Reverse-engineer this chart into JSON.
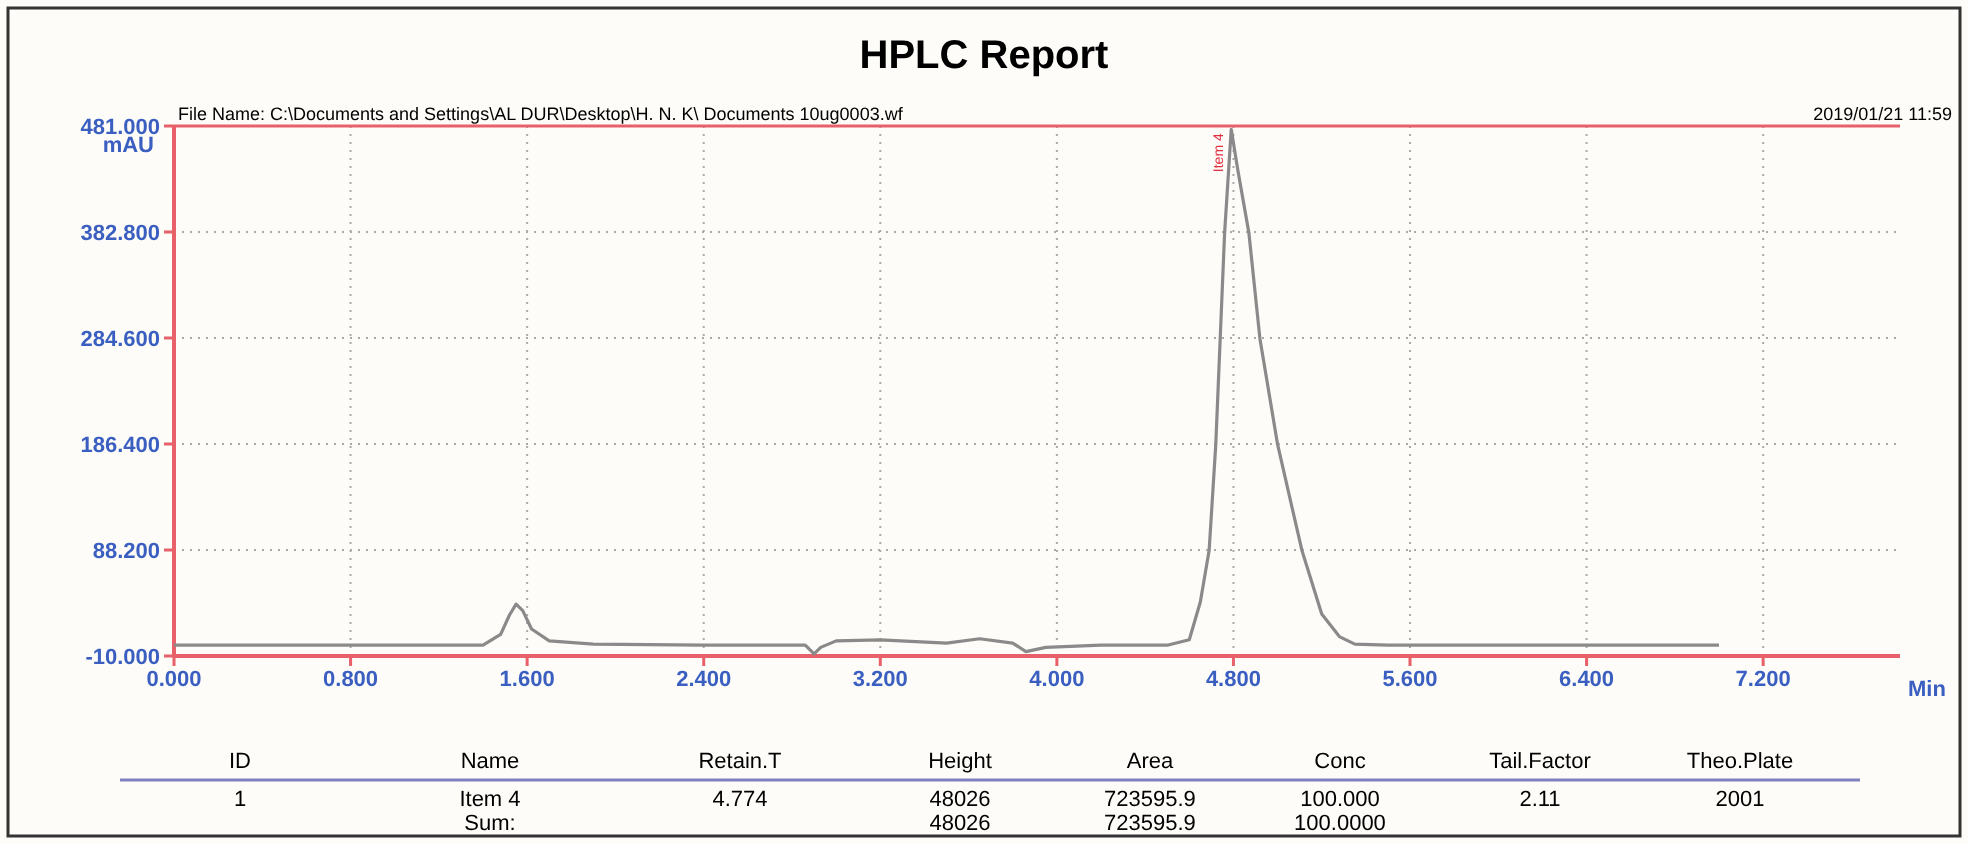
{
  "chart_data": {
    "type": "line",
    "title": "HPLC Report",
    "ylabel": "mAU",
    "xlabel": "Min",
    "annotations": [
      "File Name: C:\\Documents and Settings\\AL DUR\\Desktop\\H. N. K\\ Documents 10ug0003.wf",
      "2019/01/21 11:59",
      {
        "text": "Item 4",
        "x": 4.79,
        "y": 478
      },
      {
        "text": "ID"
      },
      {
        "text": "Name"
      },
      {
        "text": "Retain.T"
      },
      {
        "text": "Height"
      },
      {
        "text": "Area"
      },
      {
        "text": "Conc"
      },
      {
        "text": "Tail.Factor"
      },
      {
        "text": "Theo.Plate"
      },
      {
        "text": "1"
      },
      {
        "text": "Item 4"
      },
      {
        "text": "4.774"
      },
      {
        "text": "48026"
      },
      {
        "text": "723595.9"
      },
      {
        "text": "100.000"
      },
      {
        "text": "2.11"
      },
      {
        "text": "2001"
      },
      {
        "text": "Sum:"
      },
      {
        "text": "48026"
      },
      {
        "text": "723595.9"
      },
      {
        "text": "100.0000"
      }
    ],
    "series": [
      {
        "color": "#8a8a8a",
        "x": [
          0,
          1.4,
          1.48,
          1.52,
          1.55,
          1.58,
          1.62,
          1.7,
          1.9,
          2.4,
          2.86,
          2.9,
          2.93,
          3.0,
          3.2,
          3.5,
          3.65,
          3.8,
          3.86,
          3.95,
          4.2,
          4.5,
          4.6,
          4.65,
          4.69,
          4.72,
          4.74,
          4.76,
          4.79,
          4.82,
          4.87,
          4.92,
          5.0,
          5.11,
          5.2,
          5.28,
          5.35,
          5.5,
          6.0,
          7.0
        ],
        "values": [
          0,
          0,
          10,
          28,
          38,
          32,
          15,
          4,
          1,
          0,
          0,
          -8,
          -2,
          4,
          5,
          2,
          6,
          2,
          -6,
          -2,
          0,
          0,
          5,
          40,
          88,
          186,
          284,
          382,
          478,
          440,
          382,
          284,
          186,
          88,
          29,
          8,
          1,
          0,
          0,
          0
        ]
      }
    ],
    "xlim": [
      0,
      7.82
    ],
    "ylim": [
      -10,
      481
    ],
    "xticks": [
      {
        "value": 0,
        "label": "0.000"
      },
      {
        "value": 0.8,
        "label": "0.800"
      },
      {
        "value": 1.6,
        "label": "1.600"
      },
      {
        "value": 2.4,
        "label": "2.400"
      },
      {
        "value": 3.2,
        "label": "3.200"
      },
      {
        "value": 4,
        "label": "4.000"
      },
      {
        "value": 4.8,
        "label": "4.800"
      },
      {
        "value": 5.6,
        "label": "5.600"
      },
      {
        "value": 6.4,
        "label": "6.400"
      },
      {
        "value": 7.2,
        "label": "7.200"
      }
    ],
    "yticks": [
      {
        "value": -10,
        "label": "-10.000"
      },
      {
        "value": 88.2,
        "label": "88.200"
      },
      {
        "value": 186.4,
        "label": "186.400"
      },
      {
        "value": 284.6,
        "label": "284.600"
      },
      {
        "value": 382.8,
        "label": "382.800"
      },
      {
        "value": 481,
        "label": "481.000"
      }
    ],
    "grid": true,
    "line_style": "solid"
  }
}
